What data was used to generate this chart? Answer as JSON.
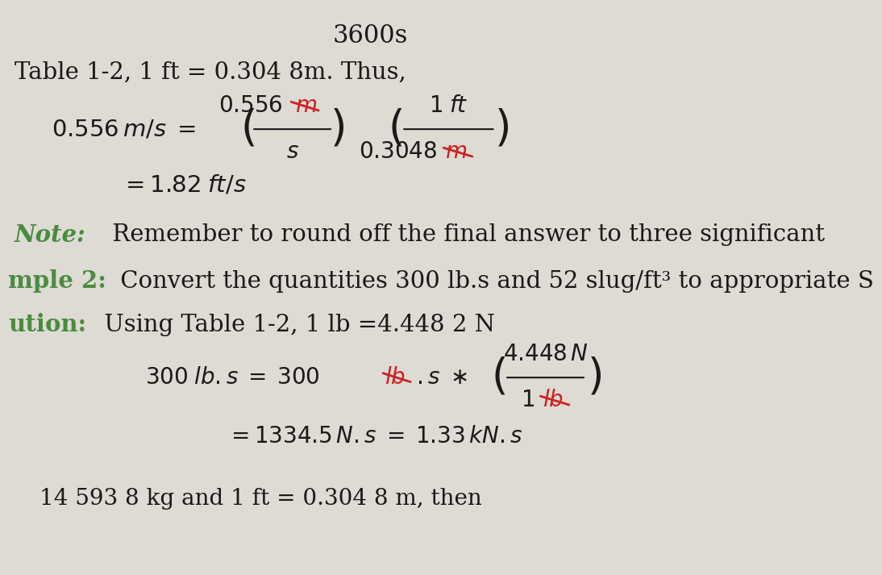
{
  "page_color": "#dedad4",
  "title_top": "3600s",
  "line1_a": "Table 1-2, ",
  "line1_b": "1 ft = 0.304 8m. Thus,",
  "note_label": "Note:",
  "note_rest": " Remember to round off the final answer to three significant",
  "example_label": "mple 2:",
  "example_rest": " Convert the quantities 300 lb.s and 52 slug/ft³ to appropriate S",
  "solution_label": "ution:",
  "solution_rest": " Using Table 1-2, 1 lb =4.448 2 N",
  "bottom_text": "14 593 8 kg and 1 ft = 0.304 8 m, then",
  "green_color": "#4a8c3f",
  "black_color": "#1a1a1a",
  "red_color": "#cc2222"
}
